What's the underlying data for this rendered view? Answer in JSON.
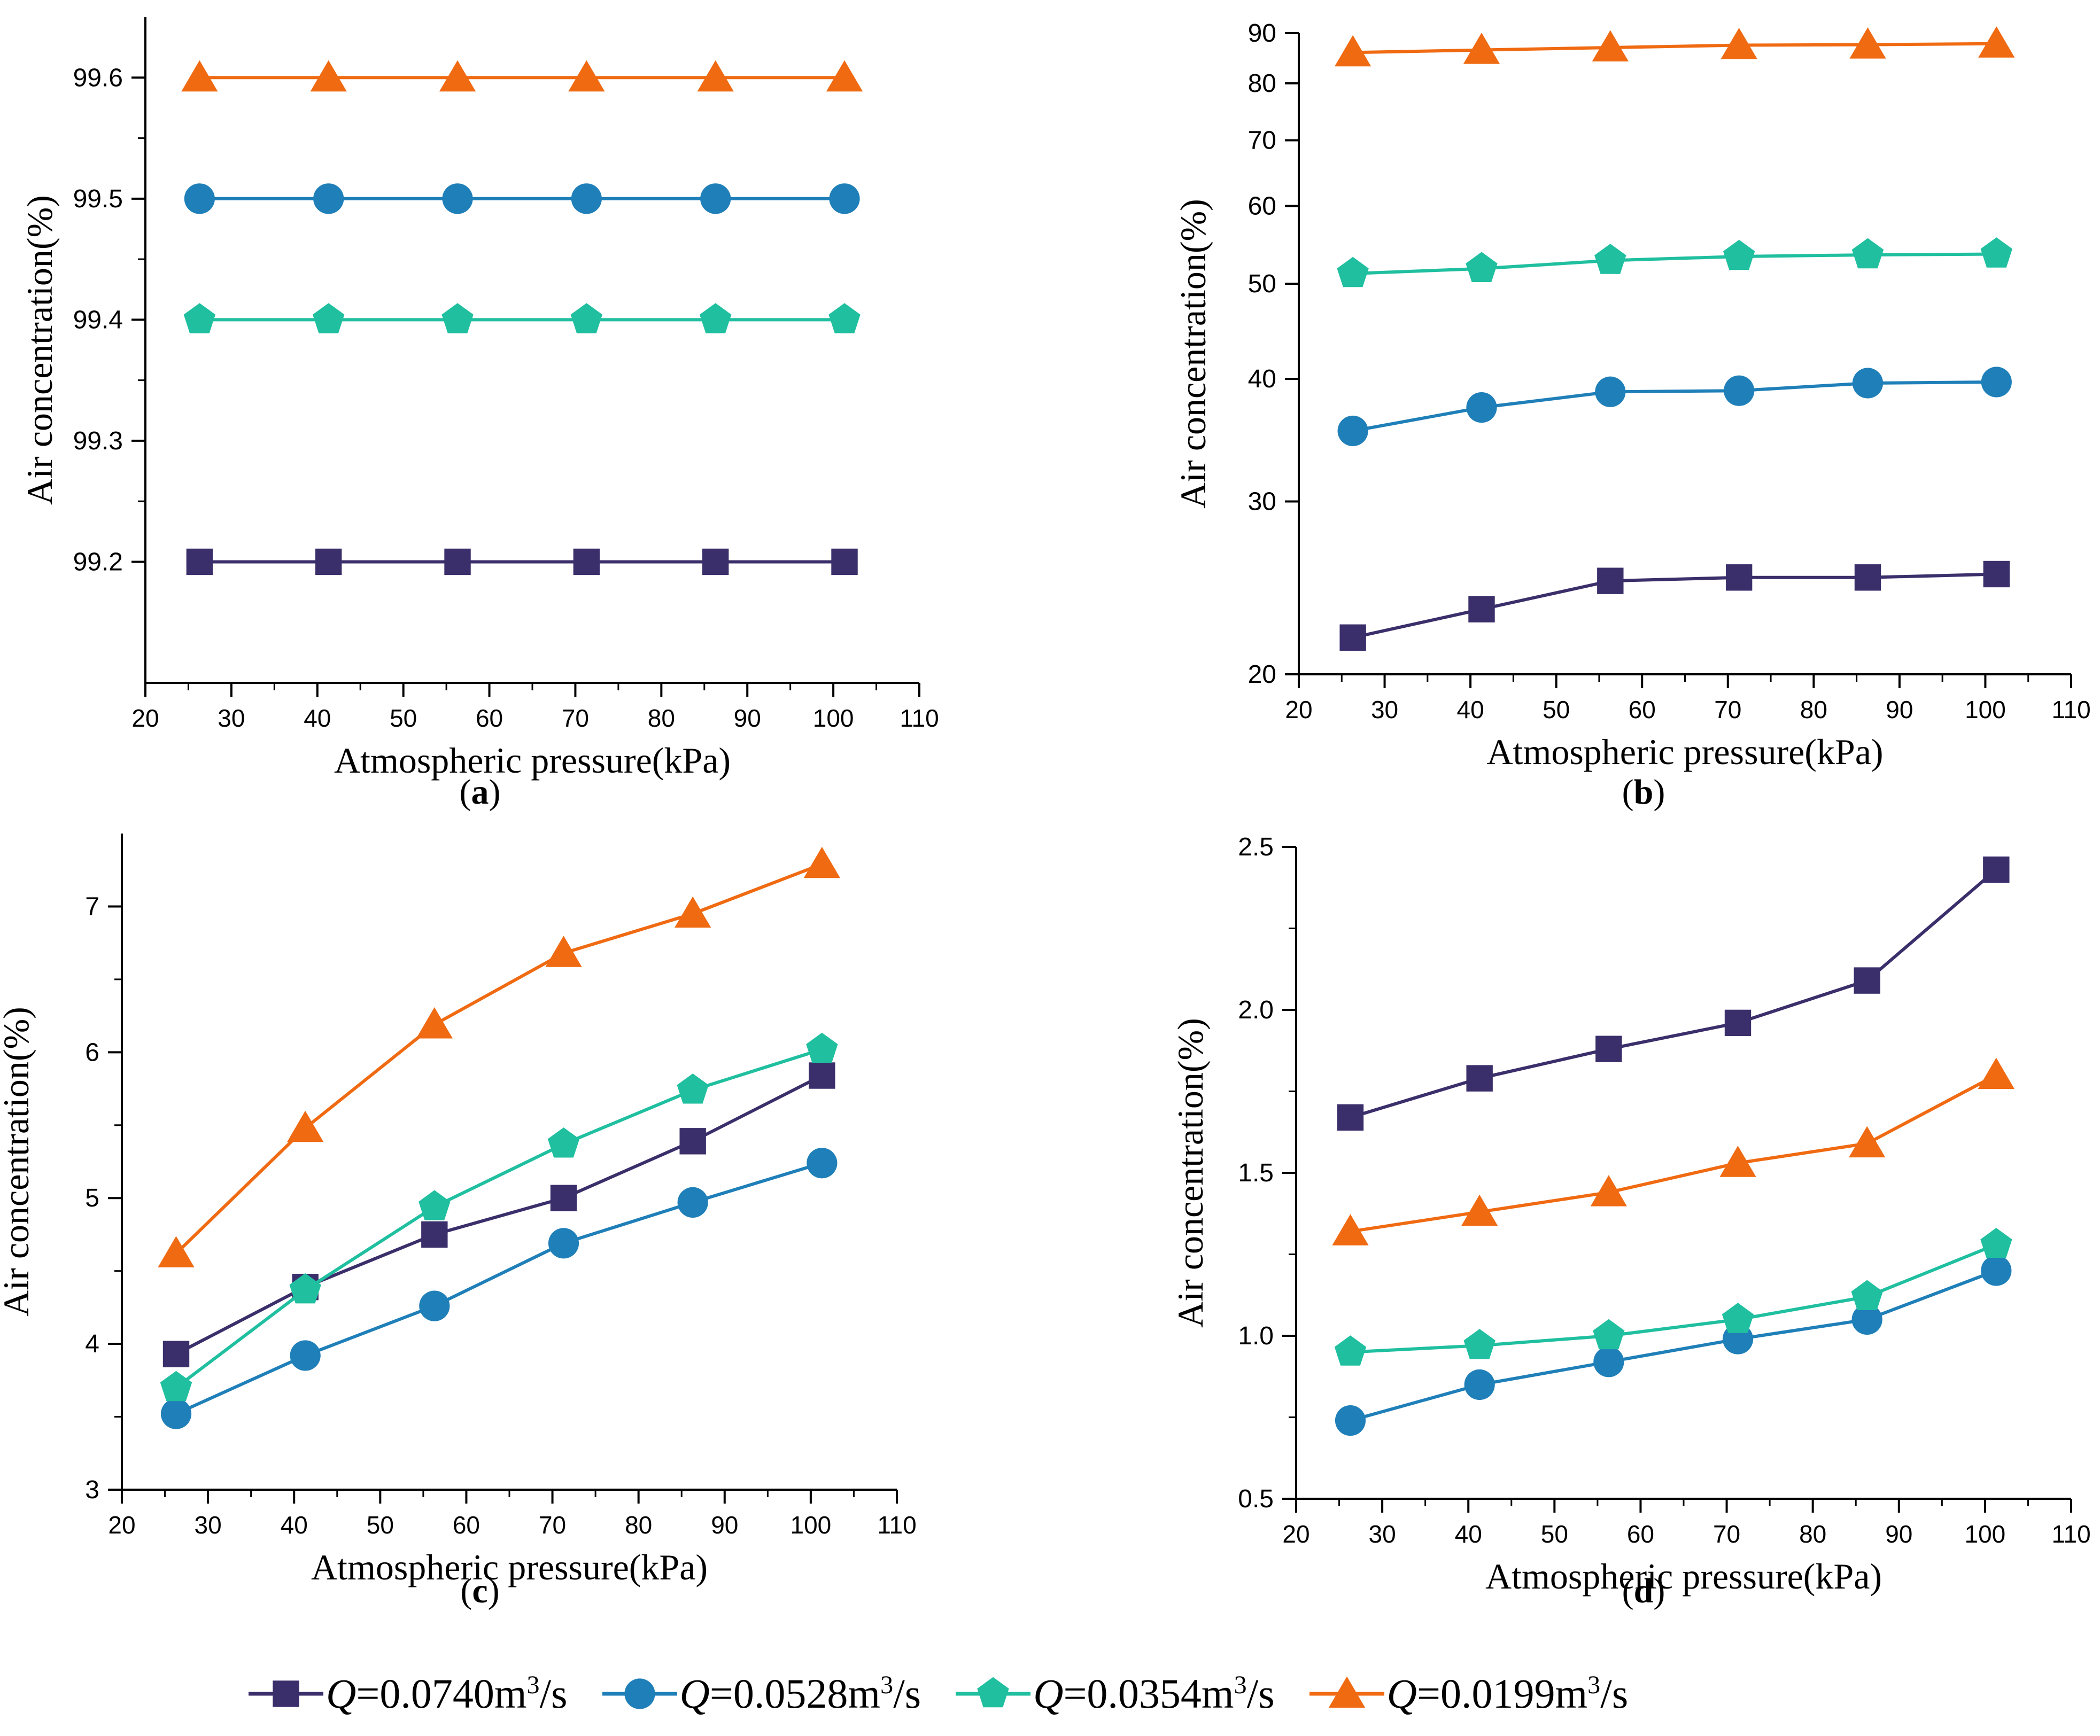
{
  "colors": {
    "Q0740": "#3b2f6b",
    "Q0528": "#1f7fb8",
    "Q0354": "#1fbf9f",
    "Q0199": "#f06a12"
  },
  "legend": [
    {
      "key": "Q0740",
      "marker": "square",
      "q": "Q",
      "eq": "=0.0740m",
      "exp": "3",
      "unit": "/s"
    },
    {
      "key": "Q0528",
      "marker": "circle",
      "q": "Q",
      "eq": "=0.0528m",
      "exp": "3",
      "unit": "/s"
    },
    {
      "key": "Q0354",
      "marker": "pentagon",
      "q": "Q",
      "eq": "=0.0354m",
      "exp": "3",
      "unit": "/s"
    },
    {
      "key": "Q0199",
      "marker": "triangle",
      "q": "Q",
      "eq": "=0.0199m",
      "exp": "3",
      "unit": "/s"
    }
  ],
  "captions": {
    "a": "a",
    "b": "b",
    "c": "c",
    "d": "d"
  },
  "chart_data": [
    {
      "id": "a",
      "type": "line",
      "scale": "linear",
      "xlabel": "Atmospheric pressure(kPa)",
      "ylabel": "Air concentration(%)",
      "xlim": [
        20,
        110
      ],
      "xticks": [
        20,
        30,
        40,
        50,
        60,
        70,
        80,
        90,
        100,
        110
      ],
      "ylim": [
        99.1,
        99.65
      ],
      "yticks": [
        99.2,
        99.3,
        99.4,
        99.5,
        99.6
      ],
      "yticklabels": [
        "99.2",
        "99.3",
        "99.4",
        "99.5",
        "99.6"
      ],
      "x": [
        26.3,
        41.3,
        56.3,
        71.3,
        86.3,
        101.3
      ],
      "series": [
        {
          "name": "Q=0.0740m3/s",
          "key": "Q0740",
          "values": [
            99.2,
            99.2,
            99.2,
            99.2,
            99.2,
            99.2
          ]
        },
        {
          "name": "Q=0.0528m3/s",
          "key": "Q0528",
          "values": [
            99.5,
            99.5,
            99.5,
            99.5,
            99.5,
            99.5
          ]
        },
        {
          "name": "Q=0.0354m3/s",
          "key": "Q0354",
          "values": [
            99.4,
            99.4,
            99.4,
            99.4,
            99.4,
            99.4
          ]
        },
        {
          "name": "Q=0.0199m3/s",
          "key": "Q0199",
          "values": [
            99.6,
            99.6,
            99.6,
            99.6,
            99.6,
            99.6
          ]
        }
      ]
    },
    {
      "id": "b",
      "type": "line",
      "scale": "log",
      "xlabel": "Atmospheric pressure(kPa)",
      "ylabel": "Air concentration(%)",
      "xlim": [
        20,
        110
      ],
      "xticks": [
        20,
        30,
        40,
        50,
        60,
        70,
        80,
        90,
        100,
        110
      ],
      "ylim": [
        20,
        90
      ],
      "yticks": [
        20,
        30,
        40,
        50,
        60,
        70,
        80,
        90
      ],
      "yticklabels": [
        "20",
        "30",
        "40",
        "50",
        "60",
        "70",
        "80",
        "90"
      ],
      "x": [
        26.3,
        41.3,
        56.3,
        71.3,
        86.3,
        101.3
      ],
      "series": [
        {
          "name": "Q=0.0740m3/s",
          "key": "Q0740",
          "values": [
            21.8,
            23.3,
            24.9,
            25.1,
            25.1,
            25.3
          ]
        },
        {
          "name": "Q=0.0528m3/s",
          "key": "Q0528",
          "values": [
            35.4,
            37.4,
            38.8,
            38.9,
            39.6,
            39.7
          ]
        },
        {
          "name": "Q=0.0354m3/s",
          "key": "Q0354",
          "values": [
            51.2,
            51.8,
            52.8,
            53.3,
            53.5,
            53.6
          ]
        },
        {
          "name": "Q=0.0199m3/s",
          "key": "Q0199",
          "values": [
            86.0,
            86.5,
            87.0,
            87.5,
            87.6,
            87.8
          ]
        }
      ]
    },
    {
      "id": "c",
      "type": "line",
      "scale": "linear",
      "xlabel": "Atmospheric pressure(kPa)",
      "ylabel": "Air concentration(%)",
      "xlim": [
        20,
        110
      ],
      "xticks": [
        20,
        30,
        40,
        50,
        60,
        70,
        80,
        90,
        100,
        110
      ],
      "ylim": [
        3,
        7.5
      ],
      "yticks": [
        3,
        4,
        5,
        6,
        7
      ],
      "yticklabels": [
        "3",
        "4",
        "5",
        "6",
        "7"
      ],
      "x": [
        26.3,
        41.3,
        56.3,
        71.3,
        86.3,
        101.3
      ],
      "series": [
        {
          "name": "Q=0.0740m3/s",
          "key": "Q0740",
          "values": [
            3.93,
            4.39,
            4.75,
            5.0,
            5.39,
            5.84
          ]
        },
        {
          "name": "Q=0.0528m3/s",
          "key": "Q0528",
          "values": [
            3.52,
            3.92,
            4.26,
            4.69,
            4.97,
            5.24
          ]
        },
        {
          "name": "Q=0.0354m3/s",
          "key": "Q0354",
          "values": [
            3.7,
            4.37,
            4.94,
            5.37,
            5.74,
            6.02
          ]
        },
        {
          "name": "Q=0.0199m3/s",
          "key": "Q0199",
          "values": [
            4.62,
            5.48,
            6.19,
            6.68,
            6.95,
            7.29
          ]
        }
      ]
    },
    {
      "id": "d",
      "type": "line",
      "scale": "linear",
      "xlabel": "Atmospheric pressure(kPa)",
      "ylabel": "Air concentration(%)",
      "xlim": [
        20,
        110
      ],
      "xticks": [
        20,
        30,
        40,
        50,
        60,
        70,
        80,
        90,
        100,
        110
      ],
      "ylim": [
        0.5,
        2.5
      ],
      "yticks": [
        0.5,
        1.0,
        1.5,
        2.0,
        2.5
      ],
      "yticklabels": [
        "0.5",
        "1.0",
        "1.5",
        "2.0",
        "2.5"
      ],
      "x": [
        26.3,
        41.3,
        56.3,
        71.3,
        86.3,
        101.3
      ],
      "series": [
        {
          "name": "Q=0.0740m3/s",
          "key": "Q0740",
          "values": [
            1.67,
            1.79,
            1.88,
            1.96,
            2.09,
            2.43
          ]
        },
        {
          "name": "Q=0.0528m3/s",
          "key": "Q0528",
          "values": [
            0.74,
            0.85,
            0.92,
            0.99,
            1.05,
            1.2
          ]
        },
        {
          "name": "Q=0.0354m3/s",
          "key": "Q0354",
          "values": [
            0.95,
            0.97,
            1.0,
            1.05,
            1.12,
            1.28
          ]
        },
        {
          "name": "Q=0.0199m3/s",
          "key": "Q0199",
          "values": [
            1.32,
            1.38,
            1.44,
            1.53,
            1.59,
            1.8
          ]
        }
      ]
    }
  ]
}
